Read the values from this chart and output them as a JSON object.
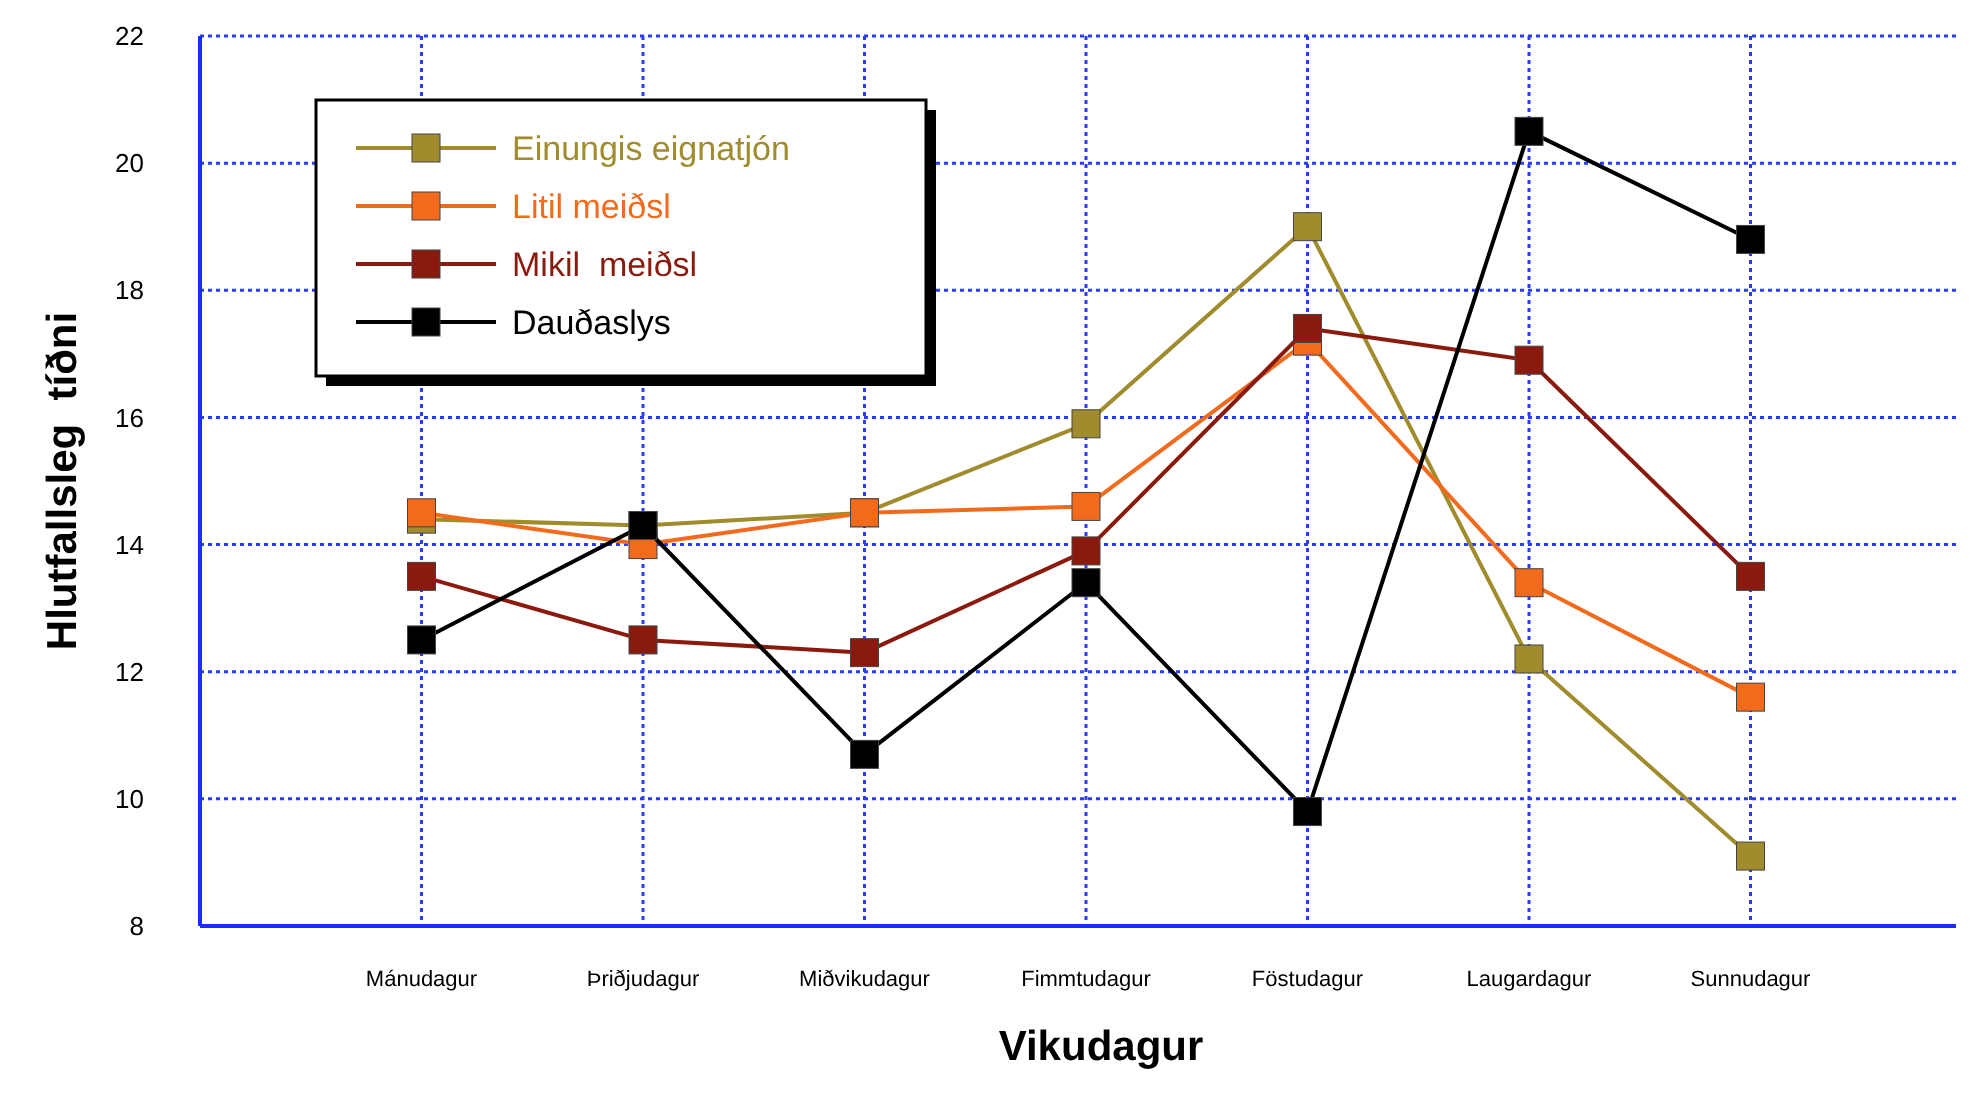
{
  "chart_data": {
    "type": "line",
    "xlabel": "Vikudagur",
    "ylabel": "Hlutfallsleg  tíðni",
    "categories": [
      "Mánudagur",
      "Þriðjudagur",
      "Miðvikudagur",
      "Fimmtudagur",
      "Föstudagur",
      "Laugardagur",
      "Sunnudagur"
    ],
    "series": [
      {
        "name": "Einungis eignatjón",
        "color": "#a08c2c",
        "values": [
          14.4,
          14.3,
          14.5,
          15.9,
          19.0,
          12.2,
          9.1
        ]
      },
      {
        "name": "Litil meiðsl",
        "color": "#f26b1d",
        "values": [
          14.5,
          14.0,
          14.5,
          14.6,
          17.2,
          13.4,
          11.6
        ]
      },
      {
        "name": "Mikil  meiðsl",
        "color": "#8b1a0e",
        "values": [
          13.5,
          12.5,
          12.3,
          13.9,
          17.4,
          16.9,
          13.5
        ]
      },
      {
        "name": "Dauðaslys",
        "color": "#000000",
        "values": [
          12.5,
          14.3,
          10.7,
          13.4,
          9.8,
          20.5,
          18.8
        ]
      }
    ],
    "ylim": [
      8,
      22
    ],
    "yticks": [
      8,
      10,
      12,
      14,
      16,
      18,
      20,
      22
    ],
    "grid": true,
    "legend": "top left",
    "marker": "square",
    "line_style": "solid"
  }
}
